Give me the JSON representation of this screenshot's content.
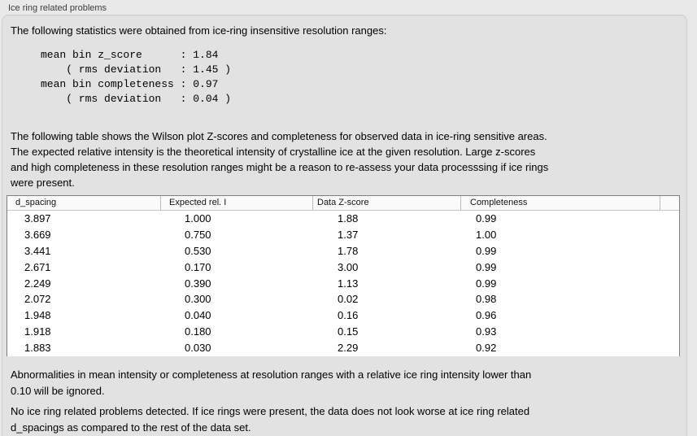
{
  "panel": {
    "title": "Ice ring related problems"
  },
  "intro": "The following statistics were obtained from ice-ring insensitive resolution ranges:",
  "stats_block": "mean bin z_score      : 1.84\n    ( rms deviation   : 1.45 )\nmean bin completeness : 0.97\n    ( rms deviation   : 0.04 )",
  "stats": {
    "mean_bin_z_score": "1.84",
    "z_score_rms_deviation": "1.45",
    "mean_bin_completeness": "0.97",
    "completeness_rms_deviation": "0.04"
  },
  "description": "The following table shows the Wilson plot Z-scores and completeness for observed data in ice-ring sensitive areas.\nThe expected relative intensity is the theoretical intensity of crystalline ice at the given resolution. Large z-scores\nand high completeness in these resolution ranges might be a reason to re-assess your data processsing if ice rings\nwere present.",
  "table": {
    "columns": [
      "d_spacing",
      "Expected rel. I",
      "Data Z-score",
      "Completeness"
    ],
    "rows": [
      [
        "3.897",
        "1.000",
        "1.88",
        "0.99"
      ],
      [
        "3.669",
        "0.750",
        "1.37",
        "1.00"
      ],
      [
        "3.441",
        "0.530",
        "1.78",
        "0.99"
      ],
      [
        "2.671",
        "0.170",
        "3.00",
        "0.99"
      ],
      [
        "2.249",
        "0.390",
        "1.13",
        "0.99"
      ],
      [
        "2.072",
        "0.300",
        "0.02",
        "0.98"
      ],
      [
        "1.948",
        "0.040",
        "0.16",
        "0.96"
      ],
      [
        "1.918",
        "0.180",
        "0.15",
        "0.93"
      ],
      [
        "1.883",
        "0.030",
        "2.29",
        "0.92"
      ]
    ]
  },
  "footnote": "Abnormalities in mean intensity or completeness at resolution ranges with a relative ice ring intensity lower than\n0.10 will be ignored.",
  "conclusion": "No ice ring related problems detected. If ice rings were present, the data does not look worse at ice ring related\nd_spacings as compared to the rest of the data set.",
  "colors": {
    "panel_background": "#e2e2e2",
    "page_background": "#e9e9e9",
    "table_border": "#808080",
    "text": "#000000"
  }
}
